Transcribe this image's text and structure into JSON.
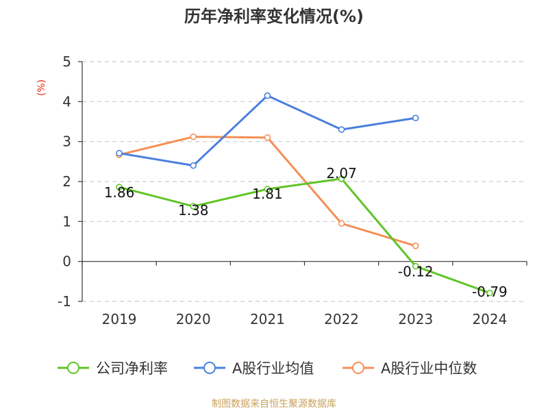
{
  "chart_data": {
    "type": "line",
    "title": "历年净利率变化情况(%)",
    "ylabel": "(%)",
    "categories": [
      "2019",
      "2020",
      "2021",
      "2022",
      "2023",
      "2024"
    ],
    "ylim": [
      -1,
      5
    ],
    "yticks": [
      "5",
      "4",
      "3",
      "2",
      "1",
      "0",
      "-1"
    ],
    "grid": true,
    "legend_position": "bottom",
    "series": [
      {
        "name": "公司净利率",
        "color": "#5fc427",
        "values": [
          1.86,
          1.38,
          1.81,
          2.07,
          -0.12,
          -0.79
        ],
        "data_labels": [
          "1.86",
          "1.38",
          "1.81",
          "2.07",
          "-0.12",
          "-0.79"
        ]
      },
      {
        "name": "A股行业均值",
        "color": "#4a7fde",
        "values": [
          2.71,
          2.4,
          4.15,
          3.3,
          3.59,
          null
        ]
      },
      {
        "name": "A股行业中位数",
        "color": "#f58f55",
        "values": [
          2.67,
          3.12,
          3.1,
          0.95,
          0.39,
          null
        ]
      }
    ]
  },
  "source": "制图数据来自恒生聚源数据库",
  "colors": {
    "axis": "#333333",
    "grid": "#cccccc",
    "ylabel": "#e8260f",
    "source": "#c8a15a"
  }
}
